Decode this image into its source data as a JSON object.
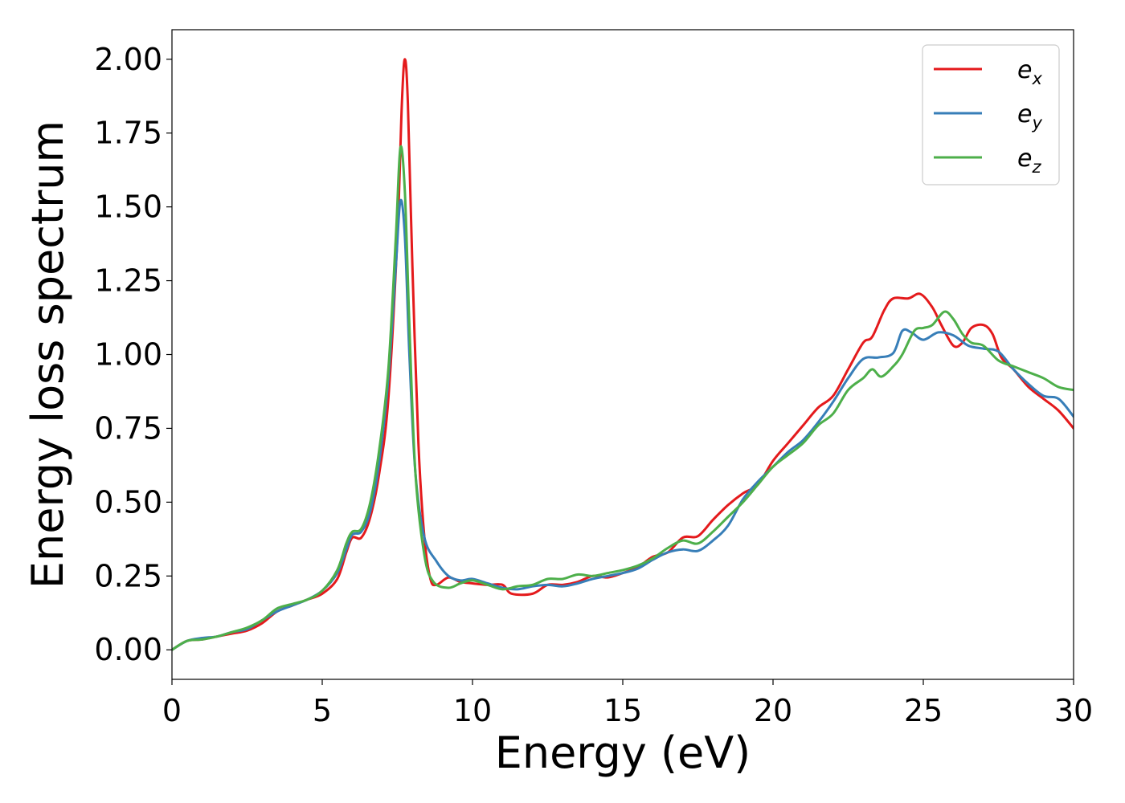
{
  "chart_data": {
    "type": "line",
    "title": "",
    "xlabel": "Energy (eV)",
    "ylabel": "Energy loss spectrum",
    "xlim": [
      0,
      30
    ],
    "ylim": [
      -0.1,
      2.1
    ],
    "xticks": [
      "0",
      "5",
      "10",
      "15",
      "20",
      "25",
      "30"
    ],
    "yticks": [
      "0.00",
      "0.25",
      "0.50",
      "0.75",
      "1.00",
      "1.25",
      "1.50",
      "1.75",
      "2.00"
    ],
    "grid": false,
    "legend_position": "top-right",
    "series": [
      {
        "name": "e_x",
        "label_base": "e",
        "label_sub": "x",
        "color": "#e41a1c",
        "points": [
          [
            0,
            0
          ],
          [
            0.5,
            0.03
          ],
          [
            1,
            0.035
          ],
          [
            1.5,
            0.045
          ],
          [
            2,
            0.055
          ],
          [
            2.5,
            0.065
          ],
          [
            3,
            0.09
          ],
          [
            3.5,
            0.13
          ],
          [
            4,
            0.15
          ],
          [
            4.5,
            0.17
          ],
          [
            5,
            0.19
          ],
          [
            5.5,
            0.24
          ],
          [
            5.8,
            0.33
          ],
          [
            6,
            0.38
          ],
          [
            6.3,
            0.38
          ],
          [
            6.6,
            0.45
          ],
          [
            6.9,
            0.6
          ],
          [
            7.2,
            0.85
          ],
          [
            7.5,
            1.4
          ],
          [
            7.65,
            1.85
          ],
          [
            7.75,
            2.0
          ],
          [
            7.85,
            1.85
          ],
          [
            8.0,
            1.3
          ],
          [
            8.2,
            0.7
          ],
          [
            8.4,
            0.38
          ],
          [
            8.6,
            0.24
          ],
          [
            8.8,
            0.22
          ],
          [
            9.2,
            0.245
          ],
          [
            9.6,
            0.23
          ],
          [
            10,
            0.225
          ],
          [
            10.5,
            0.22
          ],
          [
            11,
            0.22
          ],
          [
            11.3,
            0.19
          ],
          [
            12,
            0.19
          ],
          [
            12.5,
            0.22
          ],
          [
            13,
            0.22
          ],
          [
            13.5,
            0.23
          ],
          [
            14,
            0.25
          ],
          [
            14.5,
            0.245
          ],
          [
            15,
            0.26
          ],
          [
            15.5,
            0.28
          ],
          [
            16,
            0.315
          ],
          [
            16.5,
            0.33
          ],
          [
            17,
            0.38
          ],
          [
            17.5,
            0.385
          ],
          [
            18,
            0.44
          ],
          [
            18.5,
            0.49
          ],
          [
            19,
            0.53
          ],
          [
            19.5,
            0.56
          ],
          [
            20,
            0.64
          ],
          [
            20.5,
            0.7
          ],
          [
            21,
            0.76
          ],
          [
            21.5,
            0.82
          ],
          [
            22,
            0.86
          ],
          [
            22.5,
            0.95
          ],
          [
            23,
            1.04
          ],
          [
            23.3,
            1.06
          ],
          [
            23.7,
            1.15
          ],
          [
            24,
            1.19
          ],
          [
            24.5,
            1.19
          ],
          [
            24.9,
            1.205
          ],
          [
            25.3,
            1.16
          ],
          [
            25.6,
            1.1
          ],
          [
            26,
            1.03
          ],
          [
            26.3,
            1.04
          ],
          [
            26.6,
            1.09
          ],
          [
            27,
            1.1
          ],
          [
            27.3,
            1.07
          ],
          [
            27.6,
            0.99
          ],
          [
            28,
            0.95
          ],
          [
            28.5,
            0.89
          ],
          [
            29,
            0.85
          ],
          [
            29.5,
            0.81
          ],
          [
            30,
            0.75
          ]
        ]
      },
      {
        "name": "e_y",
        "label_base": "e",
        "label_sub": "y",
        "color": "#377eb8",
        "points": [
          [
            0,
            0
          ],
          [
            0.5,
            0.03
          ],
          [
            1,
            0.04
          ],
          [
            1.5,
            0.045
          ],
          [
            2,
            0.06
          ],
          [
            2.5,
            0.07
          ],
          [
            3,
            0.1
          ],
          [
            3.5,
            0.13
          ],
          [
            4,
            0.15
          ],
          [
            4.5,
            0.17
          ],
          [
            5,
            0.2
          ],
          [
            5.5,
            0.26
          ],
          [
            5.8,
            0.34
          ],
          [
            6,
            0.39
          ],
          [
            6.3,
            0.4
          ],
          [
            6.6,
            0.47
          ],
          [
            6.9,
            0.64
          ],
          [
            7.2,
            0.92
          ],
          [
            7.45,
            1.3
          ],
          [
            7.6,
            1.52
          ],
          [
            7.75,
            1.4
          ],
          [
            7.9,
            1.0
          ],
          [
            8.1,
            0.6
          ],
          [
            8.4,
            0.38
          ],
          [
            8.8,
            0.3
          ],
          [
            9.2,
            0.25
          ],
          [
            9.6,
            0.235
          ],
          [
            10,
            0.24
          ],
          [
            10.5,
            0.225
          ],
          [
            11,
            0.21
          ],
          [
            11.5,
            0.205
          ],
          [
            12,
            0.215
          ],
          [
            12.5,
            0.22
          ],
          [
            13,
            0.215
          ],
          [
            13.5,
            0.225
          ],
          [
            14,
            0.24
          ],
          [
            14.5,
            0.25
          ],
          [
            15,
            0.26
          ],
          [
            15.5,
            0.275
          ],
          [
            16,
            0.305
          ],
          [
            16.5,
            0.33
          ],
          [
            17,
            0.34
          ],
          [
            17.5,
            0.335
          ],
          [
            18,
            0.37
          ],
          [
            18.5,
            0.42
          ],
          [
            19,
            0.51
          ],
          [
            19.5,
            0.57
          ],
          [
            20,
            0.62
          ],
          [
            20.5,
            0.67
          ],
          [
            21,
            0.71
          ],
          [
            21.5,
            0.77
          ],
          [
            22,
            0.84
          ],
          [
            22.5,
            0.92
          ],
          [
            23,
            0.985
          ],
          [
            23.5,
            0.99
          ],
          [
            24,
            1.005
          ],
          [
            24.3,
            1.08
          ],
          [
            24.6,
            1.075
          ],
          [
            25,
            1.05
          ],
          [
            25.5,
            1.075
          ],
          [
            26,
            1.065
          ],
          [
            26.5,
            1.03
          ],
          [
            27,
            1.02
          ],
          [
            27.5,
            1.01
          ],
          [
            28,
            0.95
          ],
          [
            28.5,
            0.9
          ],
          [
            29,
            0.86
          ],
          [
            29.5,
            0.85
          ],
          [
            30,
            0.79
          ]
        ]
      },
      {
        "name": "e_z",
        "label_base": "e",
        "label_sub": "z",
        "color": "#4daf4a",
        "points": [
          [
            0,
            0
          ],
          [
            0.5,
            0.03
          ],
          [
            1,
            0.035
          ],
          [
            1.5,
            0.045
          ],
          [
            2,
            0.06
          ],
          [
            2.5,
            0.075
          ],
          [
            3,
            0.1
          ],
          [
            3.5,
            0.14
          ],
          [
            4,
            0.155
          ],
          [
            4.5,
            0.17
          ],
          [
            5,
            0.2
          ],
          [
            5.5,
            0.27
          ],
          [
            5.8,
            0.36
          ],
          [
            6,
            0.4
          ],
          [
            6.3,
            0.41
          ],
          [
            6.6,
            0.5
          ],
          [
            6.9,
            0.68
          ],
          [
            7.2,
            0.95
          ],
          [
            7.45,
            1.4
          ],
          [
            7.6,
            1.7
          ],
          [
            7.75,
            1.55
          ],
          [
            7.9,
            1.1
          ],
          [
            8.1,
            0.6
          ],
          [
            8.4,
            0.32
          ],
          [
            8.7,
            0.23
          ],
          [
            9.2,
            0.21
          ],
          [
            9.6,
            0.225
          ],
          [
            10,
            0.235
          ],
          [
            10.5,
            0.22
          ],
          [
            11,
            0.205
          ],
          [
            11.5,
            0.215
          ],
          [
            12,
            0.22
          ],
          [
            12.5,
            0.24
          ],
          [
            13,
            0.24
          ],
          [
            13.5,
            0.255
          ],
          [
            14,
            0.25
          ],
          [
            14.5,
            0.26
          ],
          [
            15,
            0.27
          ],
          [
            15.5,
            0.285
          ],
          [
            16,
            0.31
          ],
          [
            16.5,
            0.345
          ],
          [
            17,
            0.37
          ],
          [
            17.5,
            0.36
          ],
          [
            18,
            0.4
          ],
          [
            18.5,
            0.45
          ],
          [
            19,
            0.5
          ],
          [
            19.5,
            0.56
          ],
          [
            20,
            0.62
          ],
          [
            20.5,
            0.66
          ],
          [
            21,
            0.7
          ],
          [
            21.5,
            0.76
          ],
          [
            22,
            0.8
          ],
          [
            22.5,
            0.88
          ],
          [
            23,
            0.92
          ],
          [
            23.3,
            0.95
          ],
          [
            23.6,
            0.925
          ],
          [
            24,
            0.96
          ],
          [
            24.3,
            1.0
          ],
          [
            24.7,
            1.08
          ],
          [
            25,
            1.09
          ],
          [
            25.3,
            1.1
          ],
          [
            25.7,
            1.145
          ],
          [
            26,
            1.12
          ],
          [
            26.3,
            1.07
          ],
          [
            26.6,
            1.04
          ],
          [
            27,
            1.03
          ],
          [
            27.5,
            0.98
          ],
          [
            28,
            0.96
          ],
          [
            28.5,
            0.94
          ],
          [
            29,
            0.92
          ],
          [
            29.5,
            0.89
          ],
          [
            30,
            0.88
          ]
        ]
      }
    ]
  }
}
